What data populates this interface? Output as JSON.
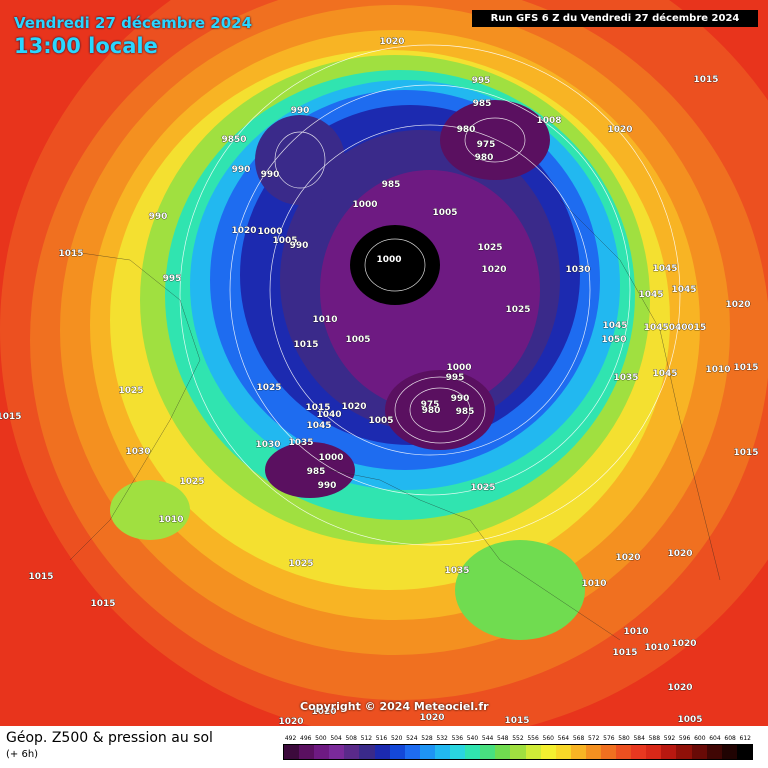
{
  "header": {
    "date_text": "Vendredi 27 décembre 2024",
    "time_text": "13:00 locale",
    "run_text": "Run GFS 6 Z du Vendredi 27 décembre 2024"
  },
  "copyright": "Copyright © 2024 Meteociel.fr",
  "footer": {
    "title": "Géop. Z500 & pression au sol",
    "subtitle": "(+ 6h)"
  },
  "scale": {
    "labels": [
      "492",
      "496",
      "500",
      "504",
      "508",
      "512",
      "516",
      "520",
      "524",
      "528",
      "532",
      "536",
      "540",
      "544",
      "548",
      "552",
      "556",
      "560",
      "564",
      "568",
      "572",
      "576",
      "580",
      "584",
      "588",
      "592",
      "596",
      "600",
      "604",
      "608",
      "612"
    ],
    "colors": [
      "#3c0a3c",
      "#5a1060",
      "#6e1a82",
      "#7a2a9a",
      "#5a2a8a",
      "#3a2a8a",
      "#1c2ab0",
      "#1448d8",
      "#1e6cf0",
      "#1e94f4",
      "#22b8f0",
      "#2ad6e0",
      "#30e4b0",
      "#48e080",
      "#70dc50",
      "#a0e040",
      "#d0ec38",
      "#f4f030",
      "#f8d828",
      "#f8b424",
      "#f49020",
      "#f07020",
      "#ec5020",
      "#e83820",
      "#d82818",
      "#b81810",
      "#901008",
      "#680a06",
      "#400604",
      "#200302",
      "#000000"
    ]
  },
  "pressure_labels": [
    {
      "text": "1020"
    },
    {
      "text": "995"
    },
    {
      "text": "990"
    },
    {
      "text": "985"
    },
    {
      "text": "980"
    },
    {
      "text": "975"
    },
    {
      "text": "980"
    },
    {
      "text": "1008"
    },
    {
      "text": "1020"
    },
    {
      "text": "1015"
    },
    {
      "text": "990"
    },
    {
      "text": "9850"
    },
    {
      "text": "990"
    },
    {
      "text": "985"
    },
    {
      "text": "1000"
    },
    {
      "text": "1005"
    },
    {
      "text": "1020"
    },
    {
      "text": "1000"
    },
    {
      "text": "1005"
    },
    {
      "text": "990"
    },
    {
      "text": "990"
    },
    {
      "text": "1015"
    },
    {
      "text": "995"
    },
    {
      "text": "1000"
    },
    {
      "text": "1025"
    },
    {
      "text": "1020"
    },
    {
      "text": "1030"
    },
    {
      "text": "1045"
    },
    {
      "text": "1045"
    },
    {
      "text": "1045"
    },
    {
      "text": "1020"
    },
    {
      "text": "1025"
    },
    {
      "text": "1010"
    },
    {
      "text": "1005"
    },
    {
      "text": "1015"
    },
    {
      "text": "1045"
    },
    {
      "text": "1050"
    },
    {
      "text": "1045040015"
    },
    {
      "text": "1025"
    },
    {
      "text": "1000"
    },
    {
      "text": "995"
    },
    {
      "text": "1035"
    },
    {
      "text": "1010"
    },
    {
      "text": "1015"
    },
    {
      "text": "1045"
    },
    {
      "text": "975"
    },
    {
      "text": "990"
    },
    {
      "text": "980"
    },
    {
      "text": "985"
    },
    {
      "text": "1020"
    },
    {
      "text": "1005"
    },
    {
      "text": "1015"
    },
    {
      "text": "1040"
    },
    {
      "text": "1045"
    },
    {
      "text": "1030"
    },
    {
      "text": "1035"
    },
    {
      "text": "1000"
    },
    {
      "text": "985"
    },
    {
      "text": "990"
    },
    {
      "text": "1015"
    },
    {
      "text": "1025"
    },
    {
      "text": "1030"
    },
    {
      "text": "1025"
    },
    {
      "text": "1025"
    },
    {
      "text": "1010"
    },
    {
      "text": "1025"
    },
    {
      "text": "1035"
    },
    {
      "text": "1020"
    },
    {
      "text": "1020"
    },
    {
      "text": "1010"
    },
    {
      "text": "1015"
    },
    {
      "text": "1015"
    },
    {
      "text": "1010"
    },
    {
      "text": "1015"
    },
    {
      "text": "1010"
    },
    {
      "text": "1020"
    },
    {
      "text": "1020"
    },
    {
      "text": "1020"
    },
    {
      "text": "1005"
    },
    {
      "text": "1020"
    },
    {
      "text": "1020"
    },
    {
      "text": "1015"
    },
    {
      "text": "1015"
    }
  ]
}
